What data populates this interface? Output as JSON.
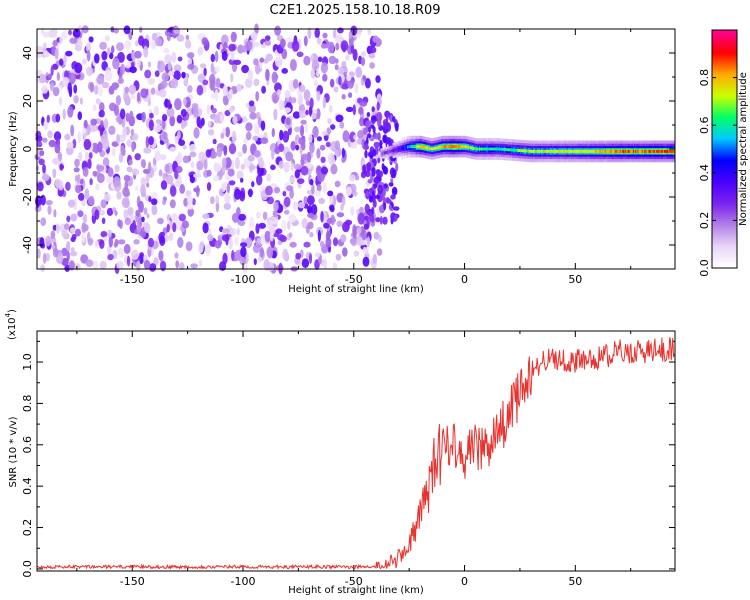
{
  "title": "C2E1.2025.158.10.18.R09",
  "chart_data": [
    {
      "type": "heatmap",
      "xlabel": "Height of straight line (km)",
      "ylabel": "Frequency (Hz)",
      "xlim": [
        -193,
        95
      ],
      "ylim": [
        -50,
        50
      ],
      "xticks": [
        -150,
        -100,
        -50,
        0,
        50
      ],
      "yticks": [
        -40,
        -20,
        0,
        20,
        40
      ],
      "colorbar": {
        "label": "Normalized spectral amplitude",
        "range": [
          0,
          1
        ],
        "ticks": [
          "0.0",
          "0.2",
          "0.4",
          "0.6",
          "0.8"
        ],
        "tick_values": [
          0,
          0.2,
          0.4,
          0.6,
          0.8
        ]
      },
      "colormap": [
        "#ffffff",
        "#e8d5f7",
        "#b07ee8",
        "#7a22ef",
        "#4a00ff",
        "#0000ff",
        "#00c8ff",
        "#00ff66",
        "#ccff00",
        "#ffaa00",
        "#ff0000",
        "#ff0090"
      ],
      "noise_region_x": [
        -193,
        -38
      ],
      "signal_track": [
        {
          "x": -38,
          "y": -2,
          "amp": 0.2
        },
        {
          "x": -34,
          "y": -1,
          "amp": 0.25
        },
        {
          "x": -30,
          "y": 0,
          "amp": 0.35
        },
        {
          "x": -25,
          "y": 1,
          "amp": 0.55
        },
        {
          "x": -20,
          "y": 1,
          "amp": 0.85
        },
        {
          "x": -15,
          "y": 0,
          "amp": 0.7
        },
        {
          "x": -10,
          "y": 1,
          "amp": 0.8
        },
        {
          "x": -5,
          "y": 1,
          "amp": 0.9
        },
        {
          "x": 0,
          "y": 1,
          "amp": 0.75
        },
        {
          "x": 5,
          "y": 0,
          "amp": 0.65
        },
        {
          "x": 15,
          "y": 0,
          "amp": 0.6
        },
        {
          "x": 30,
          "y": -1,
          "amp": 0.7
        },
        {
          "x": 50,
          "y": -1,
          "amp": 0.75
        },
        {
          "x": 70,
          "y": -1,
          "amp": 0.85
        },
        {
          "x": 95,
          "y": -1,
          "amp": 0.9
        }
      ]
    },
    {
      "type": "line",
      "xlabel": "Height of straight line (km)",
      "ylabel": "SNR (10 * v/v)",
      "y_multiplier_label": "(x10",
      "y_multiplier_exp": "4",
      "xlim": [
        -193,
        95
      ],
      "ylim": [
        -0.01,
        1.15
      ],
      "xticks": [
        -150,
        -100,
        -50,
        0,
        50
      ],
      "yticks": [
        0.0,
        0.2,
        0.4,
        0.6,
        0.8,
        1.0
      ],
      "ytick_labels": [
        "0.0",
        "0.2",
        "0.4",
        "0.6",
        "0.8",
        "1.0"
      ],
      "line_color": "#e8322e",
      "series": [
        {
          "x": [
            -193,
            -150,
            -100,
            -50,
            -40,
            -35,
            -30,
            -25,
            -20,
            -15,
            -10,
            -5,
            0,
            5,
            10,
            15,
            20,
            25,
            30,
            35,
            40,
            50,
            60,
            70,
            80,
            90,
            95
          ],
          "values": [
            0.01,
            0.01,
            0.01,
            0.01,
            0.01,
            0.02,
            0.05,
            0.12,
            0.25,
            0.45,
            0.6,
            0.62,
            0.55,
            0.58,
            0.6,
            0.65,
            0.75,
            0.85,
            0.95,
            1.0,
            1.02,
            1.0,
            1.02,
            1.05,
            1.05,
            1.06,
            1.07
          ]
        }
      ]
    }
  ]
}
